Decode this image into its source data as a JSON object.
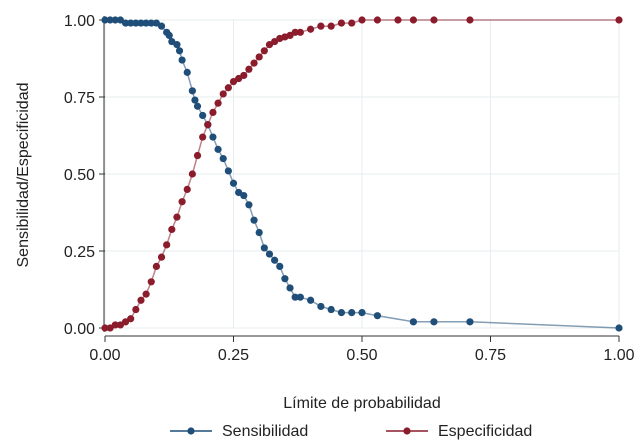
{
  "chart_data": {
    "type": "line",
    "title": "",
    "xlabel": "Límite de probabilidad",
    "ylabel": "Sensibilidad/Especificidad",
    "xlim": [
      0,
      1
    ],
    "ylim": [
      0,
      1
    ],
    "grid": true,
    "legend": "bottom",
    "x_ticks": [
      "0.00",
      "0.25",
      "0.50",
      "0.75",
      "1.00"
    ],
    "y_ticks": [
      "0.00",
      "0.25",
      "0.50",
      "0.75",
      "1.00"
    ],
    "series": [
      {
        "name": "Sensibilidad",
        "color": "#1f4e79",
        "x": [
          0.0,
          0.01,
          0.02,
          0.03,
          0.04,
          0.05,
          0.06,
          0.07,
          0.08,
          0.09,
          0.1,
          0.11,
          0.12,
          0.125,
          0.13,
          0.14,
          0.145,
          0.15,
          0.16,
          0.17,
          0.175,
          0.18,
          0.19,
          0.2,
          0.21,
          0.22,
          0.23,
          0.24,
          0.25,
          0.26,
          0.27,
          0.28,
          0.29,
          0.3,
          0.31,
          0.32,
          0.33,
          0.34,
          0.35,
          0.36,
          0.37,
          0.38,
          0.4,
          0.42,
          0.44,
          0.46,
          0.48,
          0.5,
          0.53,
          0.6,
          0.64,
          0.71,
          1.0
        ],
        "y": [
          1.0,
          1.0,
          1.0,
          1.0,
          0.99,
          0.99,
          0.99,
          0.99,
          0.99,
          0.99,
          0.99,
          0.98,
          0.96,
          0.95,
          0.93,
          0.92,
          0.9,
          0.87,
          0.83,
          0.77,
          0.74,
          0.72,
          0.69,
          0.66,
          0.62,
          0.58,
          0.55,
          0.51,
          0.47,
          0.44,
          0.43,
          0.4,
          0.35,
          0.31,
          0.26,
          0.24,
          0.22,
          0.2,
          0.16,
          0.13,
          0.1,
          0.1,
          0.09,
          0.07,
          0.06,
          0.05,
          0.05,
          0.05,
          0.04,
          0.02,
          0.02,
          0.02,
          0.0
        ]
      },
      {
        "name": "Especificidad",
        "color": "#8b1c2c",
        "x": [
          0.0,
          0.01,
          0.02,
          0.03,
          0.04,
          0.05,
          0.06,
          0.07,
          0.08,
          0.09,
          0.1,
          0.11,
          0.12,
          0.13,
          0.14,
          0.15,
          0.16,
          0.17,
          0.18,
          0.19,
          0.2,
          0.21,
          0.22,
          0.23,
          0.24,
          0.25,
          0.26,
          0.27,
          0.28,
          0.29,
          0.3,
          0.31,
          0.32,
          0.33,
          0.34,
          0.35,
          0.36,
          0.37,
          0.38,
          0.4,
          0.42,
          0.44,
          0.46,
          0.48,
          0.5,
          0.53,
          0.57,
          0.6,
          0.64,
          0.71,
          1.0
        ],
        "y": [
          0.0,
          0.0,
          0.01,
          0.01,
          0.02,
          0.03,
          0.06,
          0.09,
          0.11,
          0.15,
          0.2,
          0.23,
          0.27,
          0.32,
          0.36,
          0.41,
          0.45,
          0.5,
          0.56,
          0.62,
          0.66,
          0.7,
          0.73,
          0.76,
          0.78,
          0.8,
          0.81,
          0.82,
          0.84,
          0.86,
          0.88,
          0.9,
          0.92,
          0.93,
          0.94,
          0.945,
          0.95,
          0.96,
          0.96,
          0.97,
          0.98,
          0.98,
          0.99,
          0.99,
          1.0,
          1.0,
          1.0,
          1.0,
          1.0,
          1.0,
          1.0
        ]
      }
    ]
  }
}
